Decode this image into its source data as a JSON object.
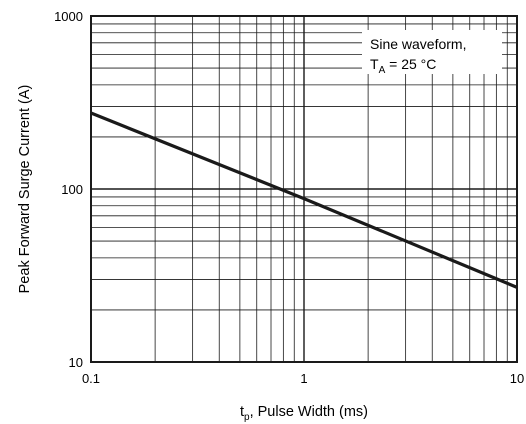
{
  "chart_data": {
    "type": "line",
    "title": "",
    "xlabel": {
      "main": "t",
      "sub": "p",
      "rest": ", Pulse Width (ms)"
    },
    "ylabel": "Peak Forward Surge Current (A)",
    "x_scale": "log",
    "y_scale": "log",
    "xlim": [
      0.1,
      10
    ],
    "ylim": [
      10,
      1000
    ],
    "grid": true,
    "x_ticks": [
      {
        "value": 0.1,
        "label": "0.1"
      },
      {
        "value": 1,
        "label": "1"
      },
      {
        "value": 10,
        "label": "10"
      }
    ],
    "y_ticks": [
      {
        "value": 10,
        "label": "10"
      },
      {
        "value": 100,
        "label": "100"
      },
      {
        "value": 1000,
        "label": "1000"
      }
    ],
    "annotation": {
      "line1": "Sine waveform,",
      "line2_main": "T",
      "line2_sub": "A",
      "line2_rest": " = 25 °C",
      "position": "top-right"
    },
    "series": [
      {
        "x": [
          0.1,
          1,
          10
        ],
        "y": [
          275,
          88,
          27
        ]
      }
    ],
    "line_color": "#1a1a1a",
    "grid_color": "#1a1a1a"
  }
}
